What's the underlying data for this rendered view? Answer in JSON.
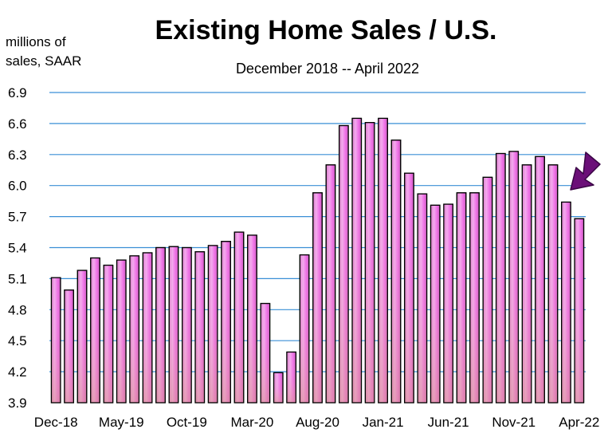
{
  "chart_data": {
    "type": "bar",
    "title": "Existing Home Sales / U.S.",
    "subtitle": "December 2018 -- April 2022",
    "ylabel_line1": "millions of",
    "ylabel_line2": "sales, SAAR",
    "xlabel": "",
    "ylim": [
      3.9,
      6.9
    ],
    "yticks": [
      "3.9",
      "4.2",
      "4.5",
      "4.8",
      "5.1",
      "5.4",
      "5.7",
      "6.0",
      "6.3",
      "6.6",
      "6.9"
    ],
    "x_tick_labels": [
      {
        "index": 0,
        "label": "Dec-18"
      },
      {
        "index": 5,
        "label": "May-19"
      },
      {
        "index": 10,
        "label": "Oct-19"
      },
      {
        "index": 15,
        "label": "Mar-20"
      },
      {
        "index": 20,
        "label": "Aug-20"
      },
      {
        "index": 25,
        "label": "Jan-21"
      },
      {
        "index": 30,
        "label": "Jun-21"
      },
      {
        "index": 35,
        "label": "Nov-21"
      },
      {
        "index": 40,
        "label": "Apr-22"
      }
    ],
    "categories": [
      "Dec-18",
      "Jan-19",
      "Feb-19",
      "Mar-19",
      "Apr-19",
      "May-19",
      "Jun-19",
      "Jul-19",
      "Aug-19",
      "Sep-19",
      "Oct-19",
      "Nov-19",
      "Dec-19",
      "Jan-20",
      "Feb-20",
      "Mar-20",
      "Apr-20",
      "May-20",
      "Jun-20",
      "Jul-20",
      "Aug-20",
      "Sep-20",
      "Oct-20",
      "Nov-20",
      "Dec-20",
      "Jan-21",
      "Feb-21",
      "Mar-21",
      "Apr-21",
      "May-21",
      "Jun-21",
      "Jul-21",
      "Aug-21",
      "Sep-21",
      "Oct-21",
      "Nov-21",
      "Dec-21",
      "Jan-22",
      "Feb-22",
      "Mar-22",
      "Apr-22"
    ],
    "values": [
      5.11,
      4.99,
      5.18,
      5.3,
      5.23,
      5.28,
      5.32,
      5.35,
      5.4,
      5.41,
      5.4,
      5.36,
      5.42,
      5.46,
      5.55,
      5.52,
      4.86,
      4.19,
      4.39,
      5.33,
      5.93,
      6.2,
      6.58,
      6.65,
      6.61,
      6.65,
      6.44,
      6.12,
      5.92,
      5.81,
      5.82,
      5.93,
      5.93,
      6.08,
      6.31,
      6.33,
      6.2,
      6.28,
      6.2,
      5.84,
      5.68
    ],
    "grid": true,
    "annotation": "down-arrow-pointing-to-last-bar",
    "colors": {
      "grid": "#3a8fd6",
      "bar_fill_light": "#f7b8f0",
      "bar_fill_mid": "#ee6ee6",
      "bar_fill_base": "#dd9fb4",
      "arrow": "#6b0f78"
    }
  }
}
